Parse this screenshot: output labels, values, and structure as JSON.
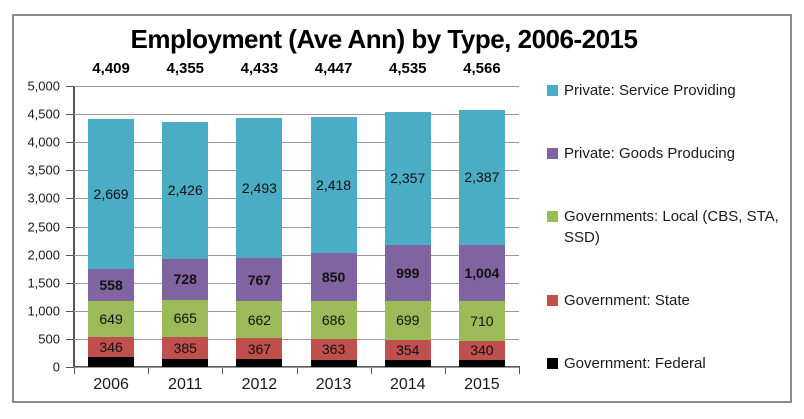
{
  "chart_data": {
    "type": "bar",
    "stacked": true,
    "title": "Employment (Ave Ann) by Type, 2006-2015",
    "categories": [
      "2006",
      "2011",
      "2012",
      "2013",
      "2014",
      "2015"
    ],
    "totals": [
      "4,409",
      "4,355",
      "4,433",
      "4,447",
      "4,535",
      "4,566"
    ],
    "series": [
      {
        "name": "Government: Federal",
        "color": "#000000",
        "values": [
          187,
          151,
          144,
          130,
          126,
          125
        ],
        "labels": [
          "",
          "",
          "",
          "",
          "",
          ""
        ],
        "bold_labels": false
      },
      {
        "name": "Government: State",
        "color": "#C0504D",
        "values": [
          346,
          385,
          367,
          363,
          354,
          340
        ],
        "labels": [
          "346",
          "385",
          "367",
          "363",
          "354",
          "340"
        ],
        "bold_labels": false
      },
      {
        "name": "Governments: Local (CBS, STA, SSD)",
        "color": "#9BBB59",
        "values": [
          649,
          665,
          662,
          686,
          699,
          710
        ],
        "labels": [
          "649",
          "665",
          "662",
          "686",
          "699",
          "710"
        ],
        "bold_labels": false
      },
      {
        "name": "Private: Goods Producing",
        "color": "#8064A2",
        "values": [
          558,
          728,
          767,
          850,
          999,
          1004
        ],
        "labels": [
          "558",
          "728",
          "767",
          "850",
          "999",
          "1,004"
        ],
        "bold_labels": true
      },
      {
        "name": "Private: Service Providing",
        "color": "#4BACC6",
        "values": [
          2669,
          2426,
          2493,
          2418,
          2357,
          2387
        ],
        "labels": [
          "2,669",
          "2,426",
          "2,493",
          "2,418",
          "2,357",
          "2,387"
        ],
        "bold_labels": false
      }
    ],
    "legend": [
      {
        "label": "Private: Service Providing",
        "color": "#4BACC6"
      },
      {
        "label": "Private: Goods Producing",
        "color": "#8064A2"
      },
      {
        "label": "Governments: Local (CBS, STA, SSD)",
        "color": "#9BBB59"
      },
      {
        "label": "Government: State",
        "color": "#C0504D"
      },
      {
        "label": "Government: Federal",
        "color": "#000000"
      }
    ],
    "legend_position": "right",
    "grid": true,
    "xlabel": "",
    "ylabel": "",
    "ylim": [
      0,
      5000
    ],
    "ytick_step": 500,
    "yticks": [
      "5,000",
      "4,500",
      "4,000",
      "3,500",
      "3,000",
      "2,500",
      "2,000",
      "1,500",
      "1,000",
      "500",
      "0"
    ]
  }
}
